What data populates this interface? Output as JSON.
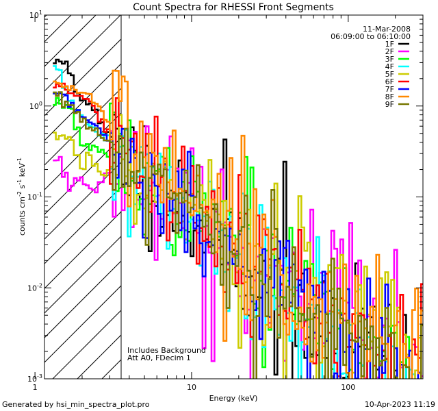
{
  "chart_data": {
    "type": "line",
    "title": "Count Spectra for RHESSI Front Segments",
    "xlabel": "Energy (keV)",
    "ylabel_parts": [
      "counts cm",
      "-2",
      " s",
      "-1",
      " keV",
      "-1"
    ],
    "x_scale": "log",
    "y_scale": "log",
    "xlim": [
      1.15,
      300
    ],
    "ylim": [
      0.001,
      10
    ],
    "x_tick_labels": [
      {
        "value": 1,
        "label": "1"
      },
      {
        "value": 10,
        "label": "10"
      },
      {
        "value": 100,
        "label": "100"
      }
    ],
    "y_tick_labels": [
      {
        "value": 0.001,
        "base": "10",
        "exp": "-3"
      },
      {
        "value": 0.01,
        "base": "10",
        "exp": "-2"
      },
      {
        "value": 0.1,
        "base": "10",
        "exp": "-1"
      },
      {
        "value": 1,
        "base": "10",
        "exp": "0"
      },
      {
        "value": 10,
        "base": "10",
        "exp": "1"
      }
    ],
    "attenuator_region_kev": [
      1.15,
      3.0
    ],
    "date": "11-Mar-2008",
    "time_range": "06:09:00 to 06:10:00",
    "annotations": [
      "Includes Background",
      "Att A0, FDecim 1"
    ],
    "legend_position": "top-right",
    "series": [
      {
        "name": "1F",
        "color": "#000000",
        "seed": 11,
        "low": [
          3.0,
          3.0,
          2.3,
          1.5,
          1.2,
          1.0,
          0.85,
          0.65,
          0.5,
          0.42
        ],
        "mid": 0.14,
        "slope": 1.5,
        "noise": 0.32
      },
      {
        "name": "2F",
        "color": "#ff00ff",
        "seed": 23,
        "low": [
          0.27,
          0.17,
          0.13,
          0.16,
          0.15,
          0.13,
          0.12,
          0.15,
          0.17,
          0.18
        ],
        "mid": 0.13,
        "slope": 1.2,
        "noise": 0.3
      },
      {
        "name": "3F",
        "color": "#00ff00",
        "seed": 37,
        "low": [
          1.1,
          1.05,
          0.9,
          0.55,
          0.4,
          0.35,
          0.33,
          0.31,
          0.3,
          0.28
        ],
        "mid": 0.13,
        "slope": 1.35,
        "noise": 0.3
      },
      {
        "name": "4F",
        "color": "#00ffff",
        "seed": 41,
        "low": [
          2.5,
          1.5,
          1.1,
          0.9,
          0.75,
          0.62,
          0.55,
          0.5,
          0.46,
          0.4
        ],
        "mid": 0.12,
        "slope": 1.45,
        "noise": 0.33
      },
      {
        "name": "5F",
        "color": "#cccc00",
        "seed": 53,
        "low": [
          0.47,
          0.46,
          0.44,
          0.28,
          0.22,
          0.3,
          0.22,
          0.19,
          0.2,
          0.23
        ],
        "mid": 0.14,
        "slope": 1.15,
        "noise": 0.3
      },
      {
        "name": "6F",
        "color": "#ff0000",
        "seed": 67,
        "low": [
          1.7,
          1.6,
          1.5,
          1.3,
          1.2,
          1.1,
          0.9,
          0.7,
          0.55,
          0.45
        ],
        "mid": 0.15,
        "slope": 1.4,
        "noise": 0.32
      },
      {
        "name": "7F",
        "color": "#0000ff",
        "seed": 71,
        "low": [
          1.4,
          1.35,
          1.1,
          0.95,
          0.8,
          0.7,
          0.6,
          0.5,
          0.45,
          0.38
        ],
        "mid": 0.12,
        "slope": 1.4,
        "noise": 0.3
      },
      {
        "name": "8F",
        "color": "#ff8800",
        "seed": 83,
        "low": [
          1.8,
          1.7,
          1.6,
          1.5,
          1.4,
          1.3,
          1.1,
          0.9,
          0.7,
          0.55
        ],
        "mid": 0.2,
        "slope": 1.3,
        "noise": 0.3
      },
      {
        "name": "9F",
        "color": "#777700",
        "seed": 97,
        "low": [
          1.3,
          1.1,
          1.0,
          0.85,
          0.7,
          0.55,
          0.48,
          0.44,
          0.4,
          0.36
        ],
        "mid": 0.12,
        "slope": 1.4,
        "noise": 0.33
      }
    ]
  },
  "footer": {
    "left": "Generated by hsi_min_spectra_plot.pro",
    "right": "10-Apr-2023 11:19"
  }
}
